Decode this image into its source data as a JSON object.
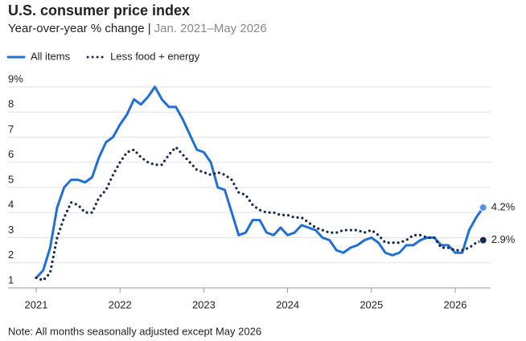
{
  "chart_data": {
    "type": "line",
    "title": "U.S. consumer price index",
    "subtitle": "Year-over-year % change |",
    "subtitle_range": "Jan. 2021–May 2026",
    "note": "Note: All months seasonally adjusted except May 2026",
    "x": [
      2021,
      2021.0833,
      2021.1667,
      2021.25,
      2021.3333,
      2021.4167,
      2021.5,
      2021.5833,
      2021.6667,
      2021.75,
      2021.8333,
      2021.9167,
      2022,
      2022.0833,
      2022.1667,
      2022.25,
      2022.3333,
      2022.4167,
      2022.5,
      2022.5833,
      2022.6667,
      2022.75,
      2022.8333,
      2022.9167,
      2023,
      2023.0833,
      2023.1667,
      2023.25,
      2023.3333,
      2023.4167,
      2023.5,
      2023.5833,
      2023.6667,
      2023.75,
      2023.8333,
      2023.9167,
      2024,
      2024.0833,
      2024.1667,
      2024.25,
      2024.3333,
      2024.4167,
      2024.5,
      2024.5833,
      2024.6667,
      2024.75,
      2024.8333,
      2024.9167,
      2025,
      2025.0833,
      2025.1667,
      2025.25,
      2025.3333,
      2025.4167,
      2025.5,
      2025.5833,
      2025.6667,
      2025.75,
      2025.8333,
      2025.9167,
      2026,
      2026.0833,
      2026.1667,
      2026.25,
      2026.3333
    ],
    "xlim": [
      2021,
      2026.3333
    ],
    "xticks": [
      2021,
      2022,
      2023,
      2024,
      2025,
      2026
    ],
    "ylim": [
      1,
      9
    ],
    "yticks": [
      1,
      2,
      3,
      4,
      5,
      6,
      7,
      8,
      {
        "value": 9,
        "label": "9%"
      }
    ],
    "grid": true,
    "series": [
      {
        "name": "All items",
        "color": "#1f6fd6",
        "style": "solid",
        "end_label": "4.2%",
        "values": [
          1.4,
          1.7,
          2.6,
          4.2,
          5.0,
          5.3,
          5.3,
          5.2,
          5.4,
          6.2,
          6.8,
          7.0,
          7.5,
          7.9,
          8.5,
          8.3,
          8.6,
          9.0,
          8.5,
          8.2,
          8.2,
          7.7,
          7.1,
          6.5,
          6.4,
          6.0,
          5.0,
          4.9,
          4.0,
          3.1,
          3.2,
          3.7,
          3.7,
          3.2,
          3.1,
          3.4,
          3.1,
          3.2,
          3.5,
          3.4,
          3.3,
          3.0,
          2.9,
          2.5,
          2.4,
          2.6,
          2.7,
          2.9,
          3.0,
          2.8,
          2.4,
          2.3,
          2.4,
          2.7,
          2.7,
          2.9,
          3.0,
          3.0,
          2.7,
          2.7,
          2.4,
          2.4,
          3.3,
          3.8,
          4.2
        ]
      },
      {
        "name": "Less food + energy",
        "color": "#152a55",
        "style": "dotted",
        "end_label": "2.9%",
        "values": [
          1.4,
          1.3,
          1.6,
          3.0,
          3.8,
          4.4,
          4.3,
          4.0,
          4.0,
          4.6,
          4.9,
          5.5,
          6.0,
          6.4,
          6.5,
          6.2,
          6.0,
          5.9,
          5.9,
          6.3,
          6.6,
          6.3,
          6.0,
          5.7,
          5.6,
          5.5,
          5.6,
          5.5,
          5.3,
          4.8,
          4.7,
          4.3,
          4.1,
          4.0,
          4.0,
          3.9,
          3.9,
          3.8,
          3.8,
          3.6,
          3.4,
          3.3,
          3.2,
          3.2,
          3.3,
          3.3,
          3.3,
          3.2,
          3.3,
          3.1,
          2.8,
          2.8,
          2.8,
          2.9,
          3.1,
          3.1,
          3.0,
          3.0,
          2.6,
          2.6,
          2.5,
          2.5,
          2.6,
          2.8,
          2.9
        ]
      }
    ]
  }
}
